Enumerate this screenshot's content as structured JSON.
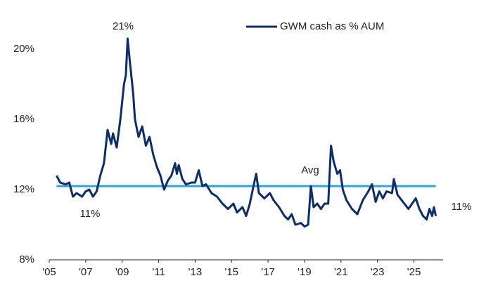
{
  "chart_data": {
    "type": "line",
    "legend": "top-right",
    "xlim": [
      2005,
      2026.6
    ],
    "ylim": [
      8,
      22
    ],
    "yticks": [
      {
        "value": 8,
        "label": "8%"
      },
      {
        "value": 12,
        "label": "12%"
      },
      {
        "value": 16,
        "label": "16%"
      },
      {
        "value": 20,
        "label": "20%"
      }
    ],
    "xticks": [
      {
        "value": 2005,
        "label": "'05"
      },
      {
        "value": 2007,
        "label": "'07"
      },
      {
        "value": 2009,
        "label": "'09"
      },
      {
        "value": 2011,
        "label": "'11"
      },
      {
        "value": 2013,
        "label": "'13"
      },
      {
        "value": 2015,
        "label": "'15"
      },
      {
        "value": 2017,
        "label": "'17"
      },
      {
        "value": 2019,
        "label": "'19"
      },
      {
        "value": 2021,
        "label": "'21"
      },
      {
        "value": 2023,
        "label": "'23"
      },
      {
        "value": 2025,
        "label": "'25"
      }
    ],
    "series": [
      {
        "name": "GWM cash as % AUM",
        "color": "#0c2c6c",
        "x": [
          2005.4,
          2005.6,
          2005.9,
          2006.1,
          2006.3,
          2006.5,
          2006.8,
          2007.0,
          2007.2,
          2007.4,
          2007.6,
          2007.8,
          2008.0,
          2008.2,
          2008.4,
          2008.5,
          2008.7,
          2008.9,
          2009.1,
          2009.2,
          2009.3,
          2009.4,
          2009.6,
          2009.7,
          2009.9,
          2010.1,
          2010.3,
          2010.5,
          2010.7,
          2010.9,
          2011.1,
          2011.3,
          2011.5,
          2011.7,
          2011.9,
          2012.0,
          2012.1,
          2012.3,
          2012.5,
          2012.8,
          2013.0,
          2013.2,
          2013.4,
          2013.6,
          2013.9,
          2014.2,
          2014.5,
          2014.8,
          2015.1,
          2015.3,
          2015.6,
          2015.8,
          2016.0,
          2016.2,
          2016.35,
          2016.5,
          2016.8,
          2017.1,
          2017.3,
          2017.6,
          2017.9,
          2018.1,
          2018.3,
          2018.5,
          2018.8,
          2019.0,
          2019.2,
          2019.35,
          2019.5,
          2019.7,
          2019.9,
          2020.1,
          2020.3,
          2020.45,
          2020.6,
          2020.8,
          2020.95,
          2021.1,
          2021.3,
          2021.6,
          2021.9,
          2022.2,
          2022.5,
          2022.7,
          2022.9,
          2023.1,
          2023.3,
          2023.5,
          2023.8,
          2023.9,
          2024.1,
          2024.4,
          2024.7,
          2024.9,
          2025.1,
          2025.3,
          2025.5,
          2025.7,
          2025.85,
          2026.0,
          2026.1,
          2026.2
        ],
        "values": [
          12.8,
          12.4,
          12.3,
          12.4,
          11.6,
          11.8,
          11.6,
          11.9,
          12.0,
          11.6,
          11.9,
          12.8,
          13.5,
          15.4,
          14.6,
          15.2,
          14.4,
          16.0,
          18.0,
          18.5,
          20.6,
          19.5,
          17.5,
          16.0,
          15.0,
          15.6,
          14.5,
          15.0,
          14.0,
          13.3,
          12.8,
          12.0,
          12.5,
          12.8,
          13.5,
          12.9,
          13.4,
          12.6,
          12.3,
          12.4,
          12.4,
          13.1,
          12.2,
          12.3,
          11.8,
          11.6,
          11.2,
          10.9,
          11.2,
          10.7,
          11.0,
          10.5,
          11.2,
          12.2,
          12.9,
          11.8,
          11.5,
          11.8,
          11.4,
          11.0,
          10.5,
          10.3,
          10.6,
          10.0,
          10.1,
          9.9,
          10.0,
          12.2,
          11.0,
          11.2,
          10.9,
          11.2,
          11.2,
          14.5,
          13.6,
          12.9,
          13.1,
          12.0,
          11.4,
          10.9,
          10.6,
          11.4,
          11.9,
          12.3,
          11.3,
          11.9,
          11.5,
          11.9,
          11.8,
          12.6,
          11.7,
          11.3,
          10.9,
          11.2,
          11.5,
          10.9,
          10.5,
          10.3,
          10.9,
          10.5,
          11.0,
          10.5
        ]
      }
    ],
    "average": {
      "label": "Avg",
      "value": 12.2,
      "color": "#2ba6de"
    },
    "annotations": [
      "21%",
      "11%",
      "11%"
    ]
  }
}
